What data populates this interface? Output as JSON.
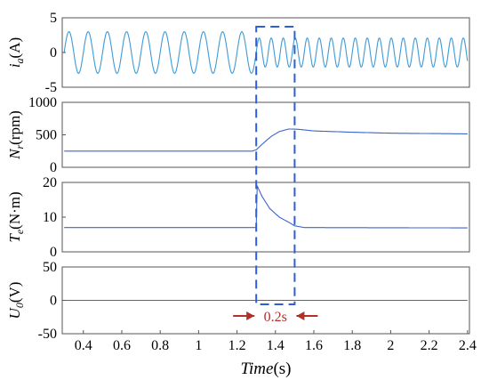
{
  "chart_data": {
    "type": "line",
    "shared_x": {
      "label_var": "Time",
      "label_unit": "(s)",
      "ticks": [
        "0.4",
        "0.6",
        "0.8",
        "1",
        "1.2",
        "1.4",
        "1.6",
        "1.8",
        "2",
        "2.2",
        "2.4"
      ],
      "tick_values": [
        0.4,
        0.6,
        0.8,
        1.0,
        1.2,
        1.4,
        1.6,
        1.8,
        2.0,
        2.2,
        2.4
      ],
      "xlim": [
        0.29,
        2.41
      ]
    },
    "panels": [
      {
        "id": "ia",
        "ylabel_var": "i",
        "ylabel_sub": "a",
        "ylabel_unit": "(A)",
        "ylim": [
          -5,
          5
        ],
        "yticks": [
          "5",
          "0",
          "-5"
        ],
        "ytick_values": [
          5,
          0,
          -5
        ],
        "series": [
          {
            "color": "#3d9ad8",
            "segments": [
              {
                "t_start": 0.3,
                "t_end": 1.3,
                "amplitude": 3.0,
                "frequency_hz": 10
              },
              {
                "t_start": 1.3,
                "t_end": 2.4,
                "amplitude": 2.1,
                "frequency_hz": 16
              }
            ]
          }
        ]
      },
      {
        "id": "nr",
        "ylabel_var": "N",
        "ylabel_sub": "r",
        "ylabel_unit": "(rpm)",
        "ylim": [
          0,
          1000
        ],
        "yticks": [
          "1000",
          "500",
          "0"
        ],
        "ytick_values": [
          1000,
          500,
          0
        ],
        "series": [
          {
            "color": "#3a65d0",
            "points": [
              [
                0.3,
                250
              ],
              [
                1.28,
                250
              ],
              [
                1.3,
                270
              ],
              [
                1.34,
                380
              ],
              [
                1.38,
                480
              ],
              [
                1.42,
                550
              ],
              [
                1.47,
                590
              ],
              [
                1.52,
                585
              ],
              [
                1.6,
                560
              ],
              [
                1.8,
                540
              ],
              [
                2.0,
                525
              ],
              [
                2.4,
                515
              ]
            ]
          }
        ]
      },
      {
        "id": "te",
        "ylabel_var": "T",
        "ylabel_sub": "e",
        "ylabel_unit": "(N·m)",
        "ylim": [
          0,
          20
        ],
        "yticks": [
          "20",
          "10",
          "0"
        ],
        "ytick_values": [
          20,
          10,
          0
        ],
        "series": [
          {
            "color": "#3a65d0",
            "points": [
              [
                0.3,
                7
              ],
              [
                1.3,
                7
              ],
              [
                1.305,
                19
              ],
              [
                1.33,
                16
              ],
              [
                1.37,
                12.5
              ],
              [
                1.42,
                10
              ],
              [
                1.47,
                8.5
              ],
              [
                1.5,
                7.5
              ],
              [
                1.55,
                7
              ],
              [
                2.4,
                6.9
              ]
            ]
          }
        ]
      },
      {
        "id": "u0",
        "ylabel_var": "U",
        "ylabel_sub": "0",
        "ylabel_unit": "(V)",
        "ylim": [
          -50,
          50
        ],
        "yticks": [
          "50",
          "0",
          "-50"
        ],
        "ytick_values": [
          50,
          0,
          -50
        ],
        "series": [
          {
            "color": "#3a65d0",
            "points": [
              [
                0.3,
                0
              ],
              [
                2.4,
                0
              ]
            ]
          }
        ]
      }
    ],
    "annotations": {
      "window": {
        "t_start": 1.3,
        "t_end": 1.5,
        "color": "#2f5fd6"
      },
      "duration_label": "0.2s",
      "arrow_color": "#b0302a"
    }
  }
}
